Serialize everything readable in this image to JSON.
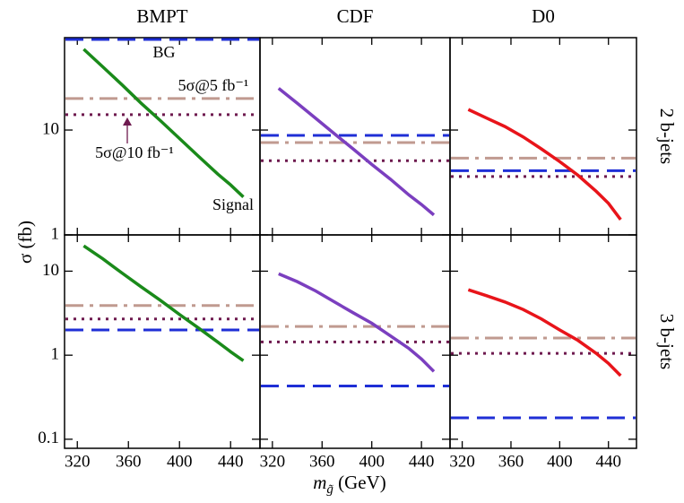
{
  "column_titles": [
    "BMPT",
    "CDF",
    "D0"
  ],
  "row_labels": [
    "2 b-jets",
    "3 b-jets"
  ],
  "ylabel": "σ (fb)",
  "xlabel": {
    "symbol": "m",
    "subscript": "g̃",
    "rest": " (GeV)"
  },
  "chart_data": [
    {
      "type": "line",
      "log": true,
      "xlim": [
        310,
        463
      ],
      "ylim": [
        1,
        76
      ],
      "xticks": [
        320,
        360,
        400,
        440
      ],
      "yticks": [
        1,
        10
      ],
      "x": [
        325,
        340,
        355,
        370,
        385,
        400,
        415,
        430,
        440,
        450
      ],
      "series": [
        {
          "name": "Signal",
          "color": "#1a8a1a",
          "values": [
            59,
            40,
            27,
            18,
            12.3,
            8.3,
            5.6,
            3.8,
            3.0,
            2.3
          ]
        }
      ],
      "hlines": [
        {
          "name": "BG",
          "color": "#1f2fd6",
          "style": "dashed",
          "value": 73
        },
        {
          "name": "5σ@5 fb⁻¹",
          "color": "#c09a90",
          "style": "dashdot",
          "value": 20
        },
        {
          "name": "5σ@10 fb⁻¹",
          "color": "#6e1a4f",
          "style": "dotted",
          "value": 14
        }
      ]
    },
    {
      "type": "line",
      "log": true,
      "xlim": [
        310,
        463
      ],
      "ylim": [
        1,
        76
      ],
      "xticks": [
        320,
        360,
        400,
        440
      ],
      "yticks": [
        1,
        10
      ],
      "x": [
        325,
        340,
        355,
        370,
        385,
        400,
        415,
        430,
        440,
        450
      ],
      "series": [
        {
          "color": "#7b3fbf",
          "values": [
            25,
            18,
            12.9,
            9.2,
            6.6,
            4.7,
            3.4,
            2.4,
            1.95,
            1.55
          ]
        }
      ],
      "hlines": [
        {
          "color": "#1f2fd6",
          "style": "dashed",
          "value": 8.9
        },
        {
          "color": "#c09a90",
          "style": "dashdot",
          "value": 7.6
        },
        {
          "color": "#6e1a4f",
          "style": "dotted",
          "value": 5.1
        }
      ]
    },
    {
      "type": "line",
      "log": true,
      "xlim": [
        310,
        463
      ],
      "ylim": [
        1,
        76
      ],
      "xticks": [
        320,
        360,
        400,
        440
      ],
      "yticks": [
        1,
        10
      ],
      "x": [
        325,
        340,
        355,
        370,
        385,
        400,
        415,
        430,
        440,
        450
      ],
      "series": [
        {
          "color": "#e8141a",
          "values": [
            15.7,
            13,
            10.8,
            8.6,
            6.6,
            5.0,
            3.7,
            2.6,
            2.0,
            1.4
          ]
        }
      ],
      "hlines": [
        {
          "color": "#1f2fd6",
          "style": "dashed",
          "value": 4.1
        },
        {
          "color": "#c09a90",
          "style": "dashdot",
          "value": 5.4
        },
        {
          "color": "#6e1a4f",
          "style": "dotted",
          "value": 3.6
        }
      ]
    },
    {
      "type": "line",
      "log": true,
      "xlim": [
        310,
        463
      ],
      "ylim": [
        0.078,
        27
      ],
      "xticks": [
        320,
        360,
        400,
        440
      ],
      "yticks": [
        0.1,
        1,
        10
      ],
      "x": [
        325,
        340,
        355,
        370,
        385,
        400,
        415,
        430,
        440,
        450
      ],
      "series": [
        {
          "color": "#1a8a1a",
          "values": [
            20,
            14,
            9.5,
            6.5,
            4.5,
            3.05,
            2.1,
            1.43,
            1.1,
            0.86
          ]
        }
      ],
      "hlines": [
        {
          "color": "#1f2fd6",
          "style": "dashed",
          "value": 2.0
        },
        {
          "color": "#c09a90",
          "style": "dashdot",
          "value": 3.9
        },
        {
          "color": "#6e1a4f",
          "style": "dotted",
          "value": 2.7
        }
      ]
    },
    {
      "type": "line",
      "log": true,
      "xlim": [
        310,
        463
      ],
      "ylim": [
        0.078,
        27
      ],
      "xticks": [
        320,
        360,
        400,
        440
      ],
      "yticks": [
        0.1,
        1,
        10
      ],
      "x": [
        325,
        340,
        355,
        370,
        385,
        400,
        415,
        430,
        440,
        450
      ],
      "series": [
        {
          "color": "#7b3fbf",
          "values": [
            9.3,
            7.5,
            5.8,
            4.3,
            3.2,
            2.4,
            1.7,
            1.2,
            0.9,
            0.64
          ]
        }
      ],
      "hlines": [
        {
          "color": "#1f2fd6",
          "style": "dashed",
          "value": 0.43
        },
        {
          "color": "#c09a90",
          "style": "dashdot",
          "value": 2.2
        },
        {
          "color": "#6e1a4f",
          "style": "dotted",
          "value": 1.44
        }
      ]
    },
    {
      "type": "line",
      "log": true,
      "xlim": [
        310,
        463
      ],
      "ylim": [
        0.078,
        27
      ],
      "xticks": [
        320,
        360,
        400,
        440
      ],
      "yticks": [
        0.1,
        1,
        10
      ],
      "x": [
        325,
        340,
        355,
        370,
        385,
        400,
        415,
        430,
        440,
        450
      ],
      "series": [
        {
          "color": "#e8141a",
          "values": [
            6.0,
            5.1,
            4.3,
            3.5,
            2.7,
            2.0,
            1.5,
            1.05,
            0.8,
            0.57
          ]
        }
      ],
      "hlines": [
        {
          "color": "#1f2fd6",
          "style": "dashed",
          "value": 0.18
        },
        {
          "color": "#c09a90",
          "style": "dashdot",
          "value": 1.6
        },
        {
          "color": "#6e1a4f",
          "style": "dotted",
          "value": 1.05
        }
      ]
    }
  ]
}
